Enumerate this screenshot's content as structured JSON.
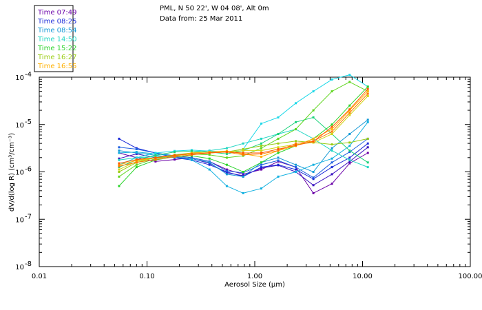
{
  "chart_data": {
    "type": "line",
    "title": "PML, N 50 22', W 04 08', Alt 0m",
    "subtitle": "Data from: 25 Mar 2011",
    "xlabel": "Aerosol Size (µm)",
    "ylabel": "dV/d(log R) (cm³/cm⁻³)",
    "xscale": "log",
    "yscale": "log",
    "xlim": [
      0.01,
      100
    ],
    "ylim_exp": [
      -8,
      -4
    ],
    "xticks": [
      {
        "label": "0.01",
        "value": 0.01
      },
      {
        "label": "0.10",
        "value": 0.1
      },
      {
        "label": "1.00",
        "value": 1
      },
      {
        "label": "10.00",
        "value": 10
      },
      {
        "label": "100.00",
        "value": 100
      }
    ],
    "yticks": [
      {
        "base": "10",
        "exp": "-8",
        "value_exp": -8
      },
      {
        "base": "10",
        "exp": "-7",
        "value_exp": -7
      },
      {
        "base": "10",
        "exp": "-6",
        "value_exp": -6
      },
      {
        "base": "10",
        "exp": "-5",
        "value_exp": -5
      },
      {
        "base": "10",
        "exp": "-4",
        "value_exp": -4
      }
    ],
    "legend_position": "top-left",
    "legend": [
      {
        "label": "Time 07:49",
        "color": "#6a00a8"
      },
      {
        "label": "Time 08:25",
        "color": "#1c2bd8"
      },
      {
        "label": "Time 08:54",
        "color": "#1499d6"
      },
      {
        "label": "Time 14:50",
        "color": "#22d6c4"
      },
      {
        "label": "Time 15:22",
        "color": "#2ad42a"
      },
      {
        "label": "Time 16:27",
        "color": "#9acd14"
      },
      {
        "label": "Time 16:55",
        "color": "#ffb000"
      }
    ],
    "x": [
      0.055,
      0.08,
      0.12,
      0.18,
      0.26,
      0.38,
      0.55,
      0.78,
      1.15,
      1.65,
      2.4,
      3.5,
      5.2,
      7.6,
      11.2
    ],
    "series": [
      {
        "name": "s1",
        "color": "#6a00a8",
        "y_exp": [
          -5.6,
          -5.7,
          -5.78,
          -5.74,
          -5.7,
          -5.78,
          -5.95,
          -6.05,
          -5.95,
          -5.78,
          -5.9,
          -6.45,
          -6.25,
          -5.82,
          -5.6
        ]
      },
      {
        "name": "s2",
        "color": "#3a10c0",
        "y_exp": [
          -5.72,
          -5.62,
          -5.7,
          -5.68,
          -5.72,
          -5.82,
          -6.02,
          -6.08,
          -5.92,
          -5.86,
          -6.0,
          -6.28,
          -6.05,
          -5.78,
          -5.48
        ]
      },
      {
        "name": "s3",
        "color": "#1c2bd8",
        "y_exp": [
          -5.3,
          -5.5,
          -5.6,
          -5.7,
          -5.75,
          -5.85,
          -6.0,
          -6.1,
          -5.9,
          -5.85,
          -5.95,
          -6.15,
          -5.9,
          -5.7,
          -5.4
        ]
      },
      {
        "name": "s4",
        "color": "#2060e0",
        "y_exp": [
          -5.48,
          -5.52,
          -5.6,
          -5.66,
          -5.7,
          -5.78,
          -5.98,
          -6.02,
          -5.85,
          -5.76,
          -5.9,
          -6.12,
          -5.8,
          -5.58,
          -5.3
        ]
      },
      {
        "name": "s5",
        "color": "#1499d6",
        "y_exp": [
          -5.55,
          -5.6,
          -5.65,
          -5.7,
          -5.72,
          -5.8,
          -6.05,
          -6.1,
          -5.8,
          -5.7,
          -5.85,
          -6.0,
          -5.5,
          -5.2,
          -4.9
        ]
      },
      {
        "name": "s6",
        "color": "#12b0e0",
        "y_exp": [
          -5.6,
          -5.58,
          -5.62,
          -5.66,
          -5.75,
          -5.95,
          -6.3,
          -6.45,
          -6.35,
          -6.1,
          -6.0,
          -5.85,
          -5.72,
          -5.45,
          -4.95
        ]
      },
      {
        "name": "s7",
        "color": "#22d6c4",
        "y_exp": [
          -5.75,
          -5.7,
          -5.68,
          -5.66,
          -5.6,
          -5.55,
          -5.5,
          -5.4,
          -5.3,
          -5.2,
          -5.1,
          -5.3,
          -5.55,
          -5.75,
          -5.9
        ]
      },
      {
        "name": "s8",
        "color": "#1ed8e8",
        "y_exp": [
          -5.85,
          -5.7,
          -5.6,
          -5.56,
          -5.54,
          -5.56,
          -5.58,
          -5.52,
          -4.98,
          -4.85,
          -4.55,
          -4.3,
          -4.05,
          -3.95,
          -4.2
        ]
      },
      {
        "name": "s9",
        "color": "#1ad27a",
        "y_exp": [
          -5.9,
          -5.75,
          -5.65,
          -5.58,
          -5.56,
          -5.58,
          -5.62,
          -5.55,
          -5.4,
          -5.2,
          -4.95,
          -4.85,
          -5.2,
          -5.55,
          -5.8
        ]
      },
      {
        "name": "s10",
        "color": "#2ad42a",
        "y_exp": [
          -6.3,
          -5.9,
          -5.75,
          -5.68,
          -5.66,
          -5.72,
          -5.85,
          -6.0,
          -5.8,
          -5.6,
          -5.45,
          -5.3,
          -5.0,
          -4.6,
          -4.2
        ]
      },
      {
        "name": "s11",
        "color": "#60d620",
        "y_exp": [
          -6.1,
          -5.85,
          -5.72,
          -5.66,
          -5.62,
          -5.64,
          -5.7,
          -5.66,
          -5.5,
          -5.3,
          -5.1,
          -4.7,
          -4.3,
          -4.1,
          -4.3
        ]
      },
      {
        "name": "s12",
        "color": "#9acd14",
        "y_exp": [
          -6.0,
          -5.8,
          -5.7,
          -5.64,
          -5.6,
          -5.58,
          -5.58,
          -5.52,
          -5.45,
          -5.4,
          -5.35,
          -5.38,
          -5.42,
          -5.38,
          -5.3
        ]
      },
      {
        "name": "s13",
        "color": "#d2d614",
        "y_exp": [
          -5.95,
          -5.78,
          -5.7,
          -5.66,
          -5.62,
          -5.6,
          -5.58,
          -5.55,
          -5.55,
          -5.48,
          -5.42,
          -5.38,
          -5.2,
          -4.8,
          -4.4
        ]
      },
      {
        "name": "s14",
        "color": "#ffb000",
        "y_exp": [
          -5.85,
          -5.76,
          -5.7,
          -5.66,
          -5.6,
          -5.58,
          -5.56,
          -5.62,
          -5.68,
          -5.55,
          -5.45,
          -5.3,
          -5.1,
          -4.7,
          -4.3
        ]
      },
      {
        "name": "s15",
        "color": "#ff7a00",
        "y_exp": [
          -5.88,
          -5.8,
          -5.74,
          -5.68,
          -5.64,
          -5.6,
          -5.58,
          -5.64,
          -5.62,
          -5.55,
          -5.4,
          -5.35,
          -5.15,
          -4.75,
          -4.35
        ]
      },
      {
        "name": "s16",
        "color": "#ff5a00",
        "y_exp": [
          -5.82,
          -5.74,
          -5.7,
          -5.65,
          -5.62,
          -5.6,
          -5.58,
          -5.6,
          -5.6,
          -5.52,
          -5.44,
          -5.36,
          -5.05,
          -4.68,
          -4.25
        ]
      }
    ]
  }
}
